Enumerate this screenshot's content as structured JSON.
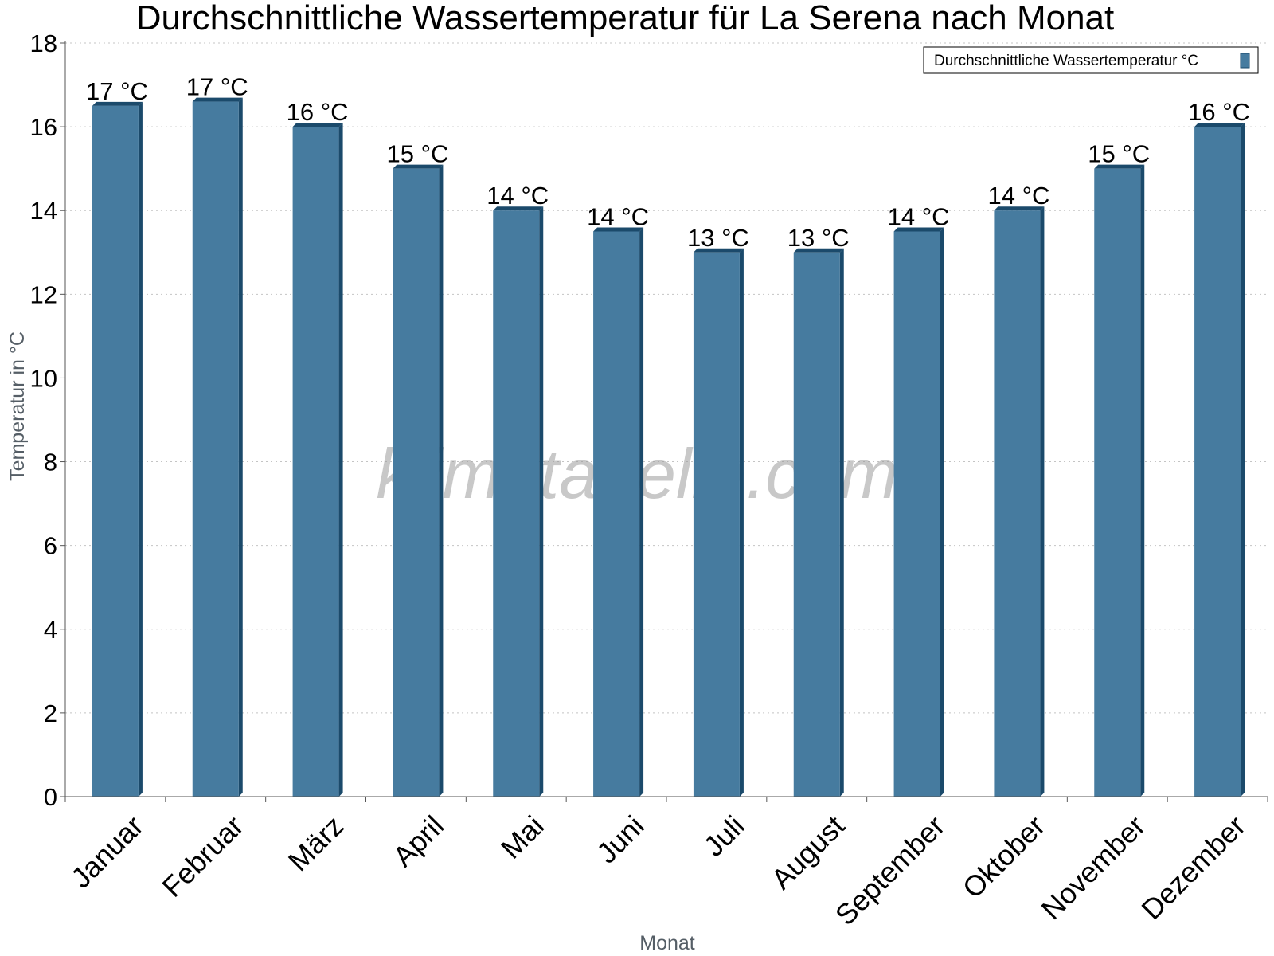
{
  "chart_data": {
    "type": "bar",
    "title": "Durchschnittliche Wassertemperatur für La Serena nach Monat",
    "xlabel": "Monat",
    "ylabel": "Temperatur in °C",
    "ylim": [
      0,
      18
    ],
    "yticks": [
      "0",
      "2",
      "4",
      "6",
      "8",
      "10",
      "12",
      "14",
      "16",
      "18"
    ],
    "grid": "horizontal dotted",
    "legend_position": "top-right",
    "categories": [
      "Januar",
      "Februar",
      "März",
      "April",
      "Mai",
      "Juni",
      "Juli",
      "August",
      "September",
      "Oktober",
      "November",
      "Dezember"
    ],
    "series": [
      {
        "name": "Durchschnittliche Wassertemperatur °C",
        "color": "#467b9f",
        "values": [
          16.5,
          16.6,
          16.0,
          15.0,
          14.0,
          13.5,
          13.0,
          13.0,
          13.5,
          14.0,
          15.0,
          16.0
        ],
        "data_labels": [
          "17 °C",
          "17 °C",
          "16 °C",
          "15 °C",
          "14 °C",
          "14 °C",
          "13 °C",
          "13 °C",
          "14 °C",
          "14 °C",
          "15 °C",
          "16 °C"
        ]
      }
    ]
  },
  "watermark": "klimatabelle.com"
}
